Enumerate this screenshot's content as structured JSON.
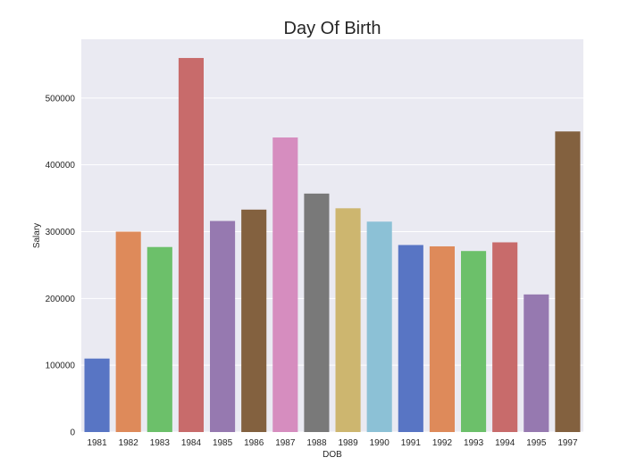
{
  "chart_data": {
    "type": "bar",
    "title": "Day Of Birth",
    "xlabel": "DOB",
    "ylabel": "Salary",
    "categories": [
      "1981",
      "1982",
      "1983",
      "1984",
      "1985",
      "1986",
      "1987",
      "1988",
      "1989",
      "1990",
      "1991",
      "1992",
      "1993",
      "1994",
      "1995",
      "1997"
    ],
    "values": [
      110000,
      300000,
      277000,
      560000,
      316000,
      333000,
      441000,
      357000,
      335000,
      315000,
      280000,
      278000,
      271000,
      284000,
      206000,
      450000
    ],
    "colors": [
      "#5875c4",
      "#de8a5a",
      "#6cc06a",
      "#c86b6b",
      "#9679b0",
      "#83613f",
      "#d68dbf",
      "#797979",
      "#cdb66f",
      "#8cc1d6",
      "#5875c4",
      "#de8a5a",
      "#6cc06a",
      "#c86b6b",
      "#9679b0",
      "#83613f"
    ],
    "yticks": [
      "0",
      "100000",
      "200000",
      "300000",
      "400000",
      "500000"
    ],
    "ylim": [
      0,
      588000
    ],
    "grid": true,
    "background": "#eaeaf2",
    "grid_color": "#ffffff"
  }
}
